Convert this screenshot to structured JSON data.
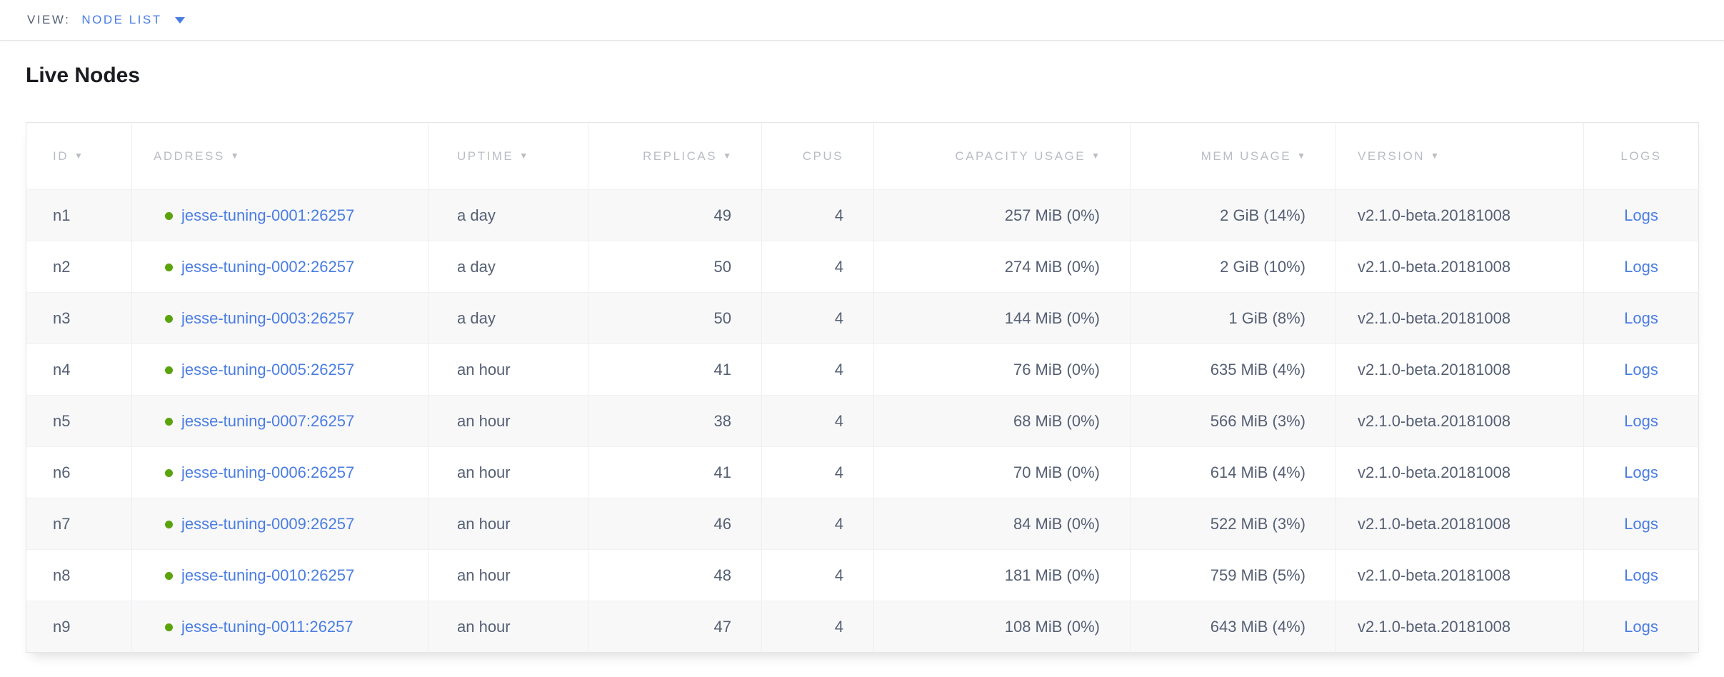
{
  "view_bar": {
    "label": "VIEW:",
    "selected": "NODE LIST"
  },
  "page": {
    "title": "Live Nodes"
  },
  "icons": {
    "sort_arrow": "▼",
    "live_status_dot": "green-circle"
  },
  "colors": {
    "link_blue": "#4a7de2",
    "live_green": "#5aa30b",
    "header_gray": "#b9bdc3",
    "body_text": "#566074"
  },
  "table": {
    "columns": [
      {
        "key": "id",
        "label": "ID",
        "sortable": true,
        "align": "left"
      },
      {
        "key": "address",
        "label": "ADDRESS",
        "sortable": true,
        "align": "left"
      },
      {
        "key": "uptime",
        "label": "UPTIME",
        "sortable": true,
        "align": "left"
      },
      {
        "key": "replicas",
        "label": "REPLICAS",
        "sortable": true,
        "align": "right"
      },
      {
        "key": "cpus",
        "label": "CPUS",
        "sortable": false,
        "align": "right"
      },
      {
        "key": "capacity",
        "label": "CAPACITY USAGE",
        "sortable": true,
        "align": "right"
      },
      {
        "key": "mem",
        "label": "MEM USAGE",
        "sortable": true,
        "align": "right"
      },
      {
        "key": "version",
        "label": "VERSION",
        "sortable": true,
        "align": "left"
      },
      {
        "key": "logs",
        "label": "LOGS",
        "sortable": false,
        "align": "center"
      }
    ],
    "rows": [
      {
        "id": "n1",
        "address": "jesse-tuning-0001:26257",
        "uptime": "a day",
        "replicas": "49",
        "cpus": "4",
        "capacity": "257 MiB (0%)",
        "mem": "2 GiB (14%)",
        "version": "v2.1.0-beta.20181008",
        "logs": "Logs"
      },
      {
        "id": "n2",
        "address": "jesse-tuning-0002:26257",
        "uptime": "a day",
        "replicas": "50",
        "cpus": "4",
        "capacity": "274 MiB (0%)",
        "mem": "2 GiB (10%)",
        "version": "v2.1.0-beta.20181008",
        "logs": "Logs"
      },
      {
        "id": "n3",
        "address": "jesse-tuning-0003:26257",
        "uptime": "a day",
        "replicas": "50",
        "cpus": "4",
        "capacity": "144 MiB (0%)",
        "mem": "1 GiB (8%)",
        "version": "v2.1.0-beta.20181008",
        "logs": "Logs"
      },
      {
        "id": "n4",
        "address": "jesse-tuning-0005:26257",
        "uptime": "an hour",
        "replicas": "41",
        "cpus": "4",
        "capacity": "76 MiB (0%)",
        "mem": "635 MiB (4%)",
        "version": "v2.1.0-beta.20181008",
        "logs": "Logs"
      },
      {
        "id": "n5",
        "address": "jesse-tuning-0007:26257",
        "uptime": "an hour",
        "replicas": "38",
        "cpus": "4",
        "capacity": "68 MiB (0%)",
        "mem": "566 MiB (3%)",
        "version": "v2.1.0-beta.20181008",
        "logs": "Logs"
      },
      {
        "id": "n6",
        "address": "jesse-tuning-0006:26257",
        "uptime": "an hour",
        "replicas": "41",
        "cpus": "4",
        "capacity": "70 MiB (0%)",
        "mem": "614 MiB (4%)",
        "version": "v2.1.0-beta.20181008",
        "logs": "Logs"
      },
      {
        "id": "n7",
        "address": "jesse-tuning-0009:26257",
        "uptime": "an hour",
        "replicas": "46",
        "cpus": "4",
        "capacity": "84 MiB (0%)",
        "mem": "522 MiB (3%)",
        "version": "v2.1.0-beta.20181008",
        "logs": "Logs"
      },
      {
        "id": "n8",
        "address": "jesse-tuning-0010:26257",
        "uptime": "an hour",
        "replicas": "48",
        "cpus": "4",
        "capacity": "181 MiB (0%)",
        "mem": "759 MiB (5%)",
        "version": "v2.1.0-beta.20181008",
        "logs": "Logs"
      },
      {
        "id": "n9",
        "address": "jesse-tuning-0011:26257",
        "uptime": "an hour",
        "replicas": "47",
        "cpus": "4",
        "capacity": "108 MiB (0%)",
        "mem": "643 MiB (4%)",
        "version": "v2.1.0-beta.20181008",
        "logs": "Logs"
      }
    ]
  }
}
